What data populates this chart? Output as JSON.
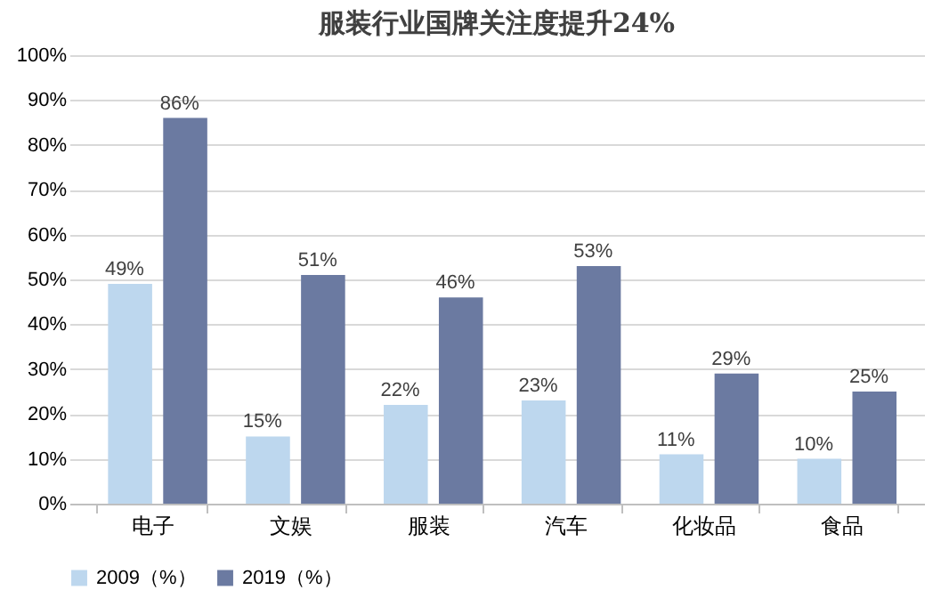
{
  "chart_data": {
    "type": "bar",
    "title": "服装行业国牌关注度提升24%",
    "categories": [
      "电子",
      "文娱",
      "服装",
      "汽车",
      "化妆品",
      "食品"
    ],
    "series": [
      {
        "name": "2009（%）",
        "color": "#bdd7ee",
        "values": [
          49,
          15,
          22,
          23,
          11,
          10
        ],
        "value_labels": [
          "49%",
          "15%",
          "22%",
          "23%",
          "11%",
          "10%"
        ]
      },
      {
        "name": "2019（%）",
        "color": "#6b7aa1",
        "values": [
          86,
          51,
          46,
          53,
          29,
          25
        ],
        "value_labels": [
          "86%",
          "51%",
          "46%",
          "53%",
          "29%",
          "25%"
        ]
      }
    ],
    "ylim": [
      0,
      100
    ],
    "yticks": [
      {
        "value": 0,
        "label": "0%"
      },
      {
        "value": 10,
        "label": "10%"
      },
      {
        "value": 20,
        "label": "20%"
      },
      {
        "value": 30,
        "label": "30%"
      },
      {
        "value": 40,
        "label": "40%"
      },
      {
        "value": 50,
        "label": "50%"
      },
      {
        "value": 60,
        "label": "60%"
      },
      {
        "value": 70,
        "label": "70%"
      },
      {
        "value": 80,
        "label": "80%"
      },
      {
        "value": 90,
        "label": "90%"
      },
      {
        "value": 100,
        "label": "100%"
      }
    ],
    "grid": "y",
    "legend": "bottom"
  }
}
